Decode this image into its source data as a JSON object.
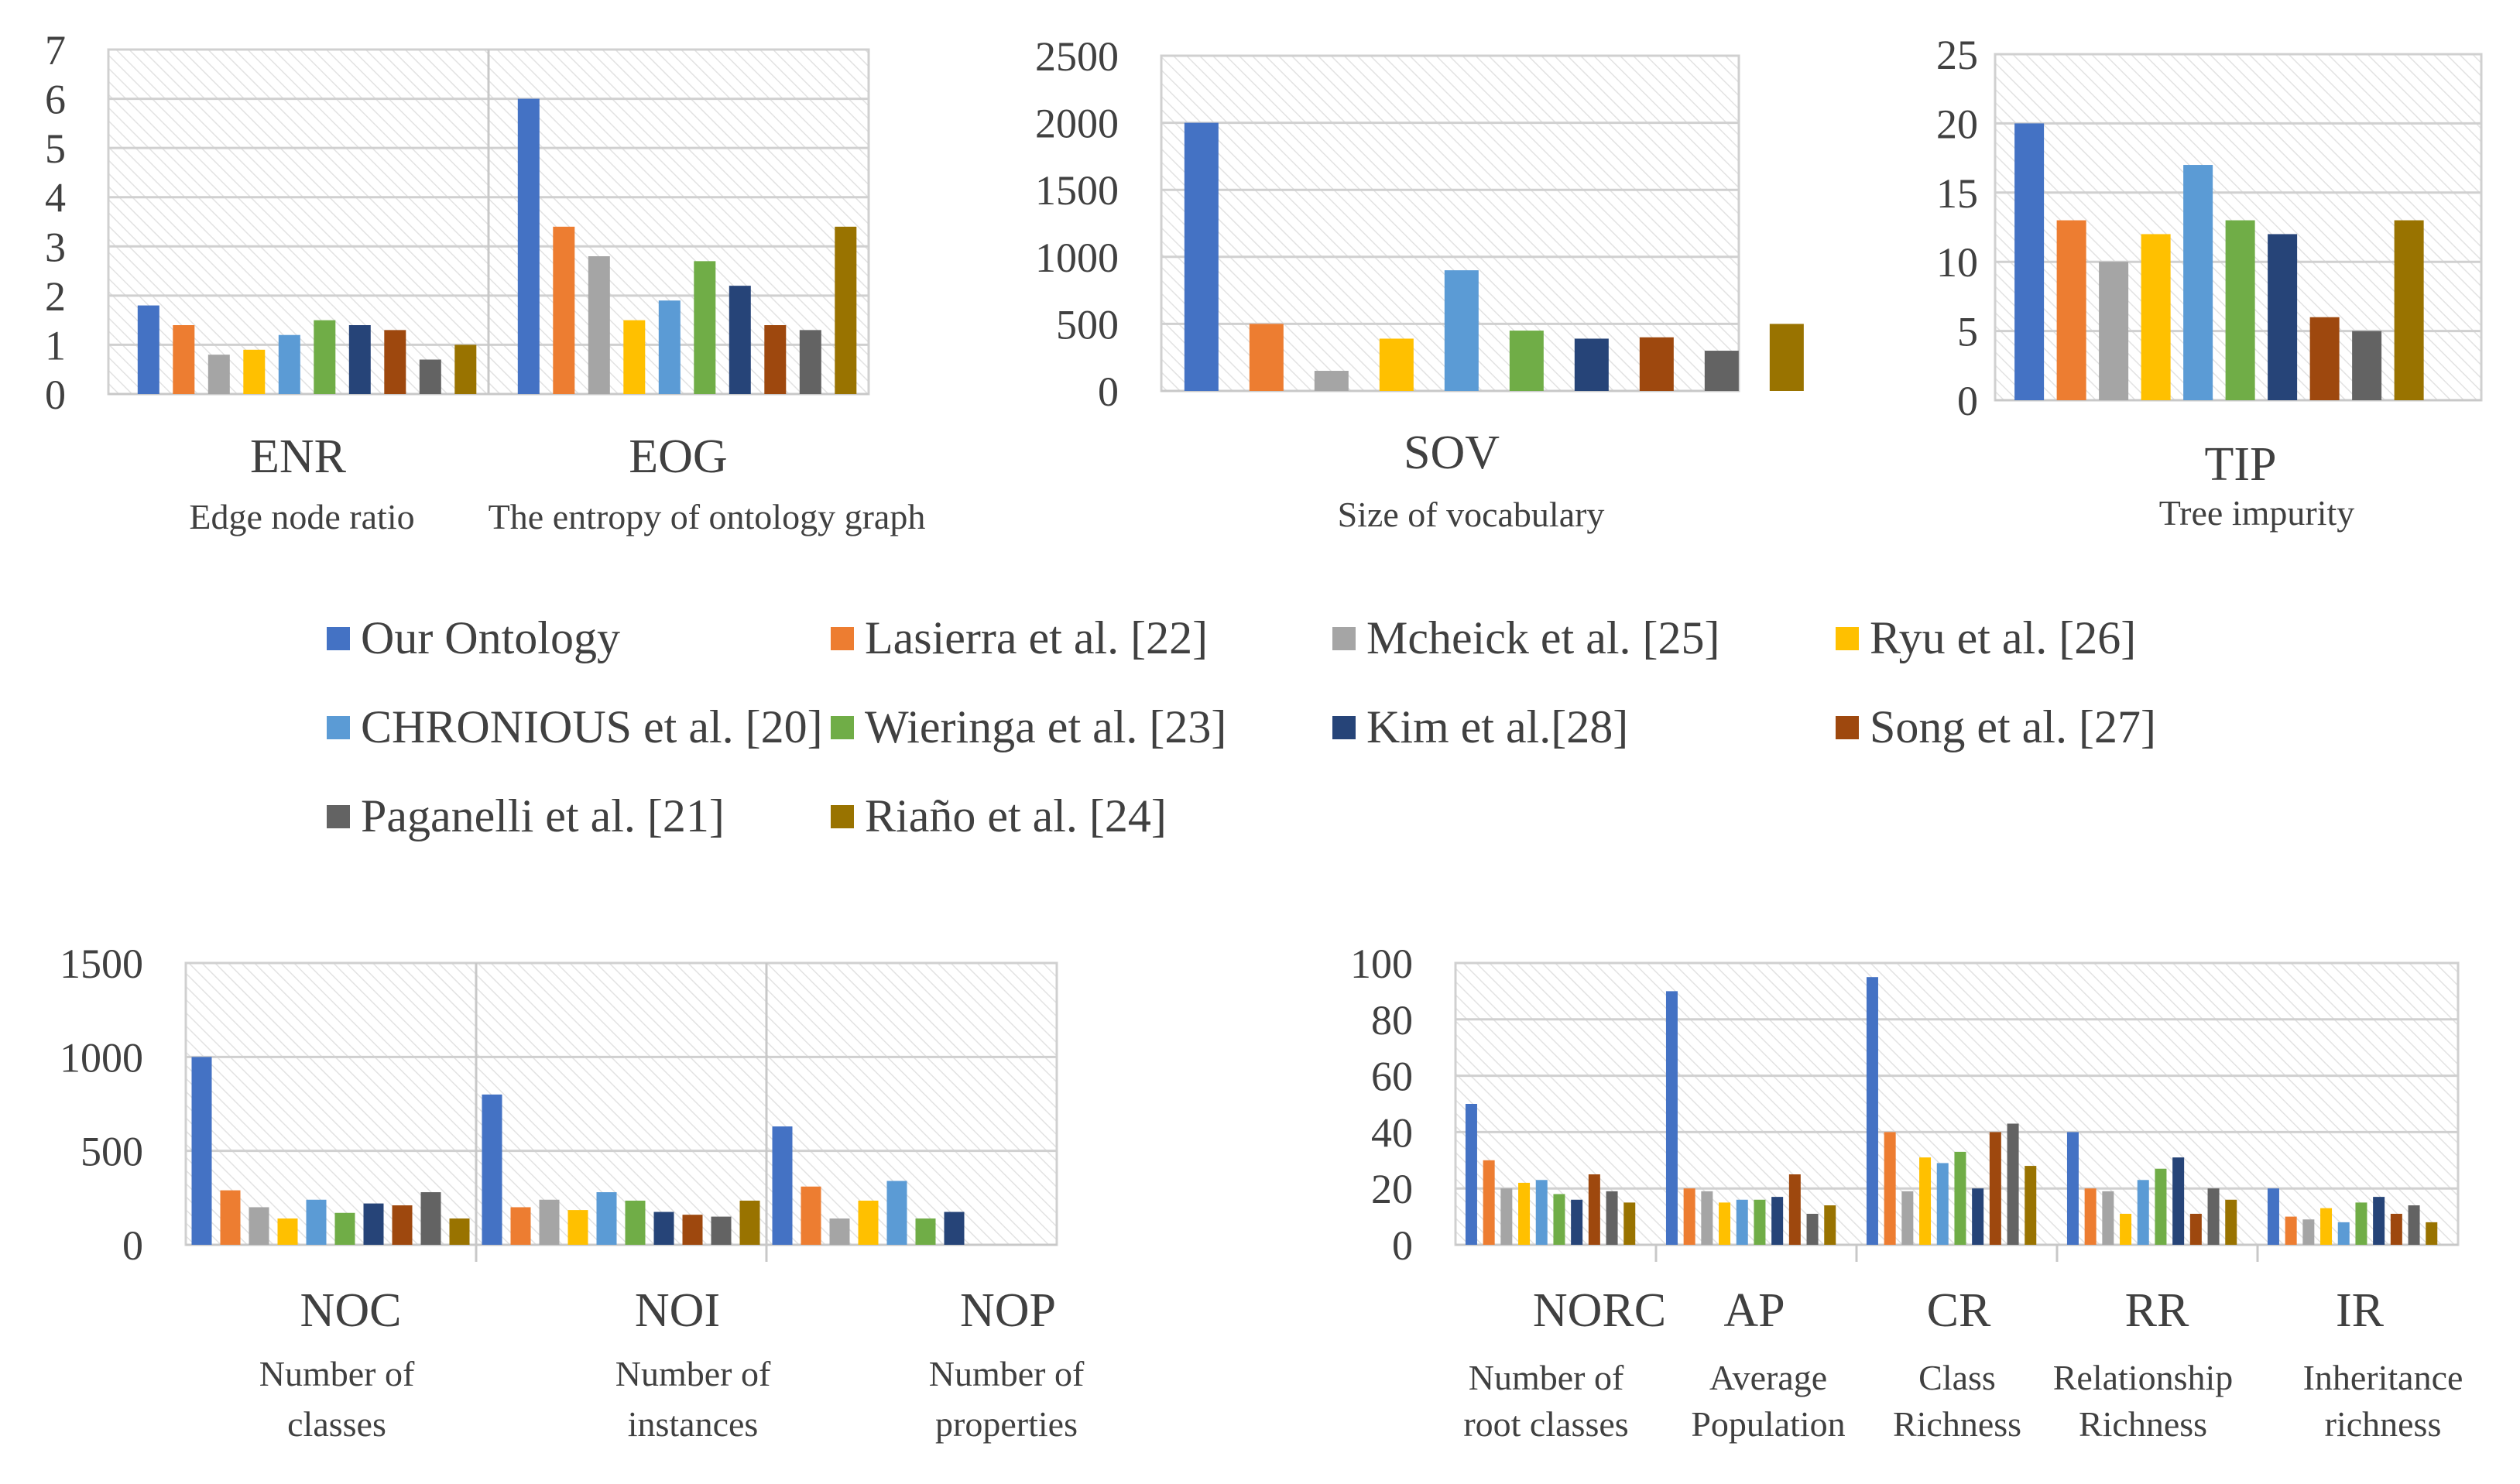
{
  "series": [
    {
      "name": "Our Ontology",
      "color": "#4472C4"
    },
    {
      "name": "Lasierra et al. [22]",
      "color": "#ED7D31"
    },
    {
      "name": "Mcheick et al. [25]",
      "color": "#A5A5A5"
    },
    {
      "name": "Ryu et al. [26]",
      "color": "#FFC000"
    },
    {
      "name": "CHRONIOUS et al. [20]",
      "color": "#5B9BD5"
    },
    {
      "name": "Wieringa et al. [23]",
      "color": "#70AD47"
    },
    {
      "name": "Kim et al.[28]",
      "color": "#264478"
    },
    {
      "name": "Song et al. [27]",
      "color": "#9E480E"
    },
    {
      "name": "Paganelli et al. [21]",
      "color": "#636363"
    },
    {
      "name": "Riaño et al. [24]",
      "color": "#997300"
    }
  ],
  "chart_data": [
    {
      "id": "enr-eog",
      "type": "bar",
      "yticks": [
        "0",
        "1",
        "2",
        "3",
        "4",
        "5",
        "6",
        "7"
      ],
      "ylim": [
        0,
        7
      ],
      "categories": [
        {
          "code": "ENR",
          "desc": [
            "Edge node ratio"
          ]
        },
        {
          "code": "EOG",
          "desc": [
            "The entropy of ontology graph"
          ]
        }
      ],
      "values": [
        [
          1.8,
          1.4,
          0.8,
          0.9,
          1.2,
          1.5,
          1.4,
          1.3,
          0.7,
          1.0
        ],
        [
          6.0,
          3.4,
          2.8,
          1.5,
          1.9,
          2.7,
          2.2,
          1.4,
          1.3,
          3.4
        ]
      ]
    },
    {
      "id": "sov",
      "type": "bar",
      "yticks": [
        "0",
        "500",
        "1000",
        "1500",
        "2000",
        "2500"
      ],
      "ylim": [
        0,
        2500
      ],
      "categories": [
        {
          "code": "SOV",
          "desc": [
            "Size of vocabulary"
          ]
        }
      ],
      "values": [
        [
          2000,
          500,
          150,
          390,
          900,
          450,
          390,
          400,
          300,
          500
        ]
      ]
    },
    {
      "id": "tip",
      "type": "bar",
      "yticks": [
        "0",
        "5",
        "10",
        "15",
        "20",
        "25"
      ],
      "ylim": [
        0,
        25
      ],
      "categories": [
        {
          "code": "TIP",
          "desc": [
            "Tree impurity"
          ]
        }
      ],
      "values": [
        [
          20,
          13,
          10,
          12,
          17,
          13,
          12,
          6,
          5,
          13
        ]
      ]
    },
    {
      "id": "noc-noi-nop",
      "type": "bar",
      "yticks": [
        "0",
        "500",
        "1000",
        "1500"
      ],
      "ylim": [
        0,
        1500
      ],
      "categories": [
        {
          "code": "NOC",
          "desc": [
            "Number of",
            "classes"
          ]
        },
        {
          "code": "NOI",
          "desc": [
            "Number of",
            "instances"
          ]
        },
        {
          "code": "NOP",
          "desc": [
            "Number of",
            "properties"
          ]
        }
      ],
      "values": [
        [
          1000,
          290,
          200,
          140,
          240,
          170,
          220,
          210,
          280,
          140
        ],
        [
          800,
          200,
          240,
          185,
          280,
          235,
          175,
          160,
          150,
          235
        ],
        [
          630,
          310,
          140,
          235,
          340,
          140,
          175,
          0,
          0,
          0
        ]
      ]
    },
    {
      "id": "richness",
      "type": "bar",
      "yticks": [
        "0",
        "20",
        "40",
        "60",
        "80",
        "100"
      ],
      "ylim": [
        0,
        100
      ],
      "categories": [
        {
          "code": "NORC",
          "desc": [
            "Number of",
            "root classes"
          ]
        },
        {
          "code": "AP",
          "desc": [
            "Average",
            "Population"
          ]
        },
        {
          "code": "CR",
          "desc": [
            "Class",
            "Richness"
          ]
        },
        {
          "code": "RR",
          "desc": [
            "Relationship",
            "Richness"
          ]
        },
        {
          "code": "IR",
          "desc": [
            "Inheritance",
            "richness"
          ]
        }
      ],
      "values": [
        [
          50,
          30,
          20,
          22,
          23,
          18,
          16,
          25,
          19,
          15
        ],
        [
          90,
          20,
          19,
          15,
          16,
          16,
          17,
          25,
          11,
          14
        ],
        [
          95,
          40,
          19,
          31,
          29,
          33,
          20,
          40,
          43,
          28
        ],
        [
          40,
          20,
          19,
          11,
          23,
          27,
          31,
          11,
          20,
          16
        ],
        [
          20,
          10,
          9,
          13,
          8,
          15,
          17,
          11,
          14,
          8
        ]
      ]
    }
  ]
}
